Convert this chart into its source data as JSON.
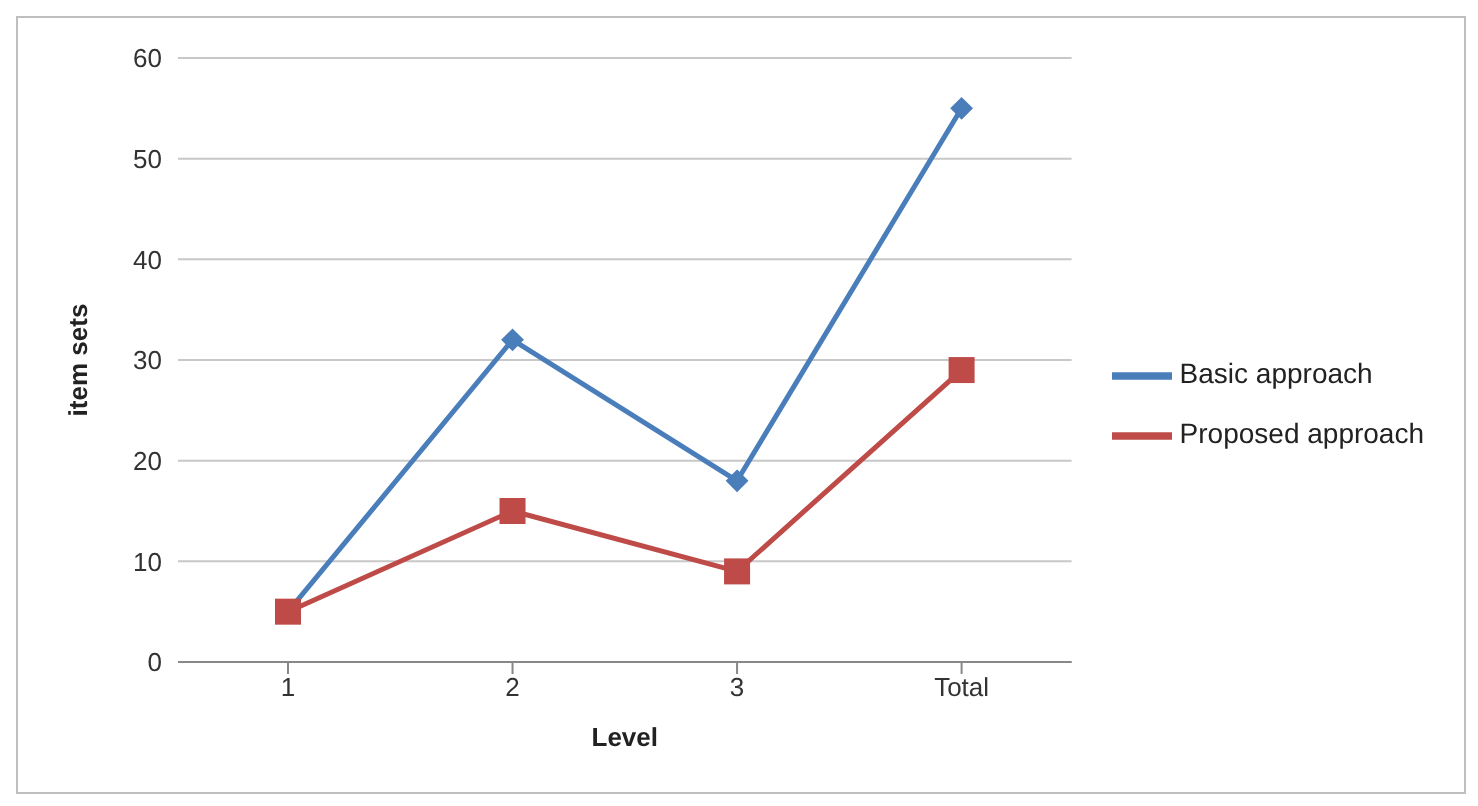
{
  "chart_data": {
    "type": "line",
    "xlabel": "Level",
    "ylabel": "item sets",
    "categories": [
      "1",
      "2",
      "3",
      "Total"
    ],
    "series": [
      {
        "name": "Basic approach",
        "color": "#4a7ebb",
        "marker": "diamond",
        "values": [
          5,
          32,
          18,
          55
        ]
      },
      {
        "name": "Proposed approach",
        "color": "#be4b48",
        "marker": "square",
        "values": [
          5,
          15,
          9,
          29
        ]
      }
    ],
    "ylim": [
      0,
      60
    ],
    "yticks": [
      0,
      10,
      20,
      30,
      40,
      50,
      60
    ],
    "grid": "y",
    "legend": "right"
  }
}
